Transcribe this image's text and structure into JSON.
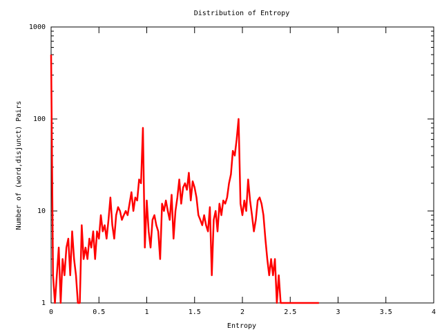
{
  "chart_data": {
    "type": "line",
    "title": "Distribution of Entropy",
    "x_label": "Entropy",
    "y_label": "Number of (word,disjunct) Pairs",
    "log_y": true,
    "grid": false,
    "xlim": [
      0,
      4
    ],
    "xticks": [
      0,
      0.5,
      1,
      1.5,
      2,
      2.5,
      3,
      3.5,
      4
    ],
    "ylim": [
      1,
      1000
    ],
    "yticks": [
      1,
      10,
      100,
      1000
    ],
    "x": [
      0,
      0.02,
      0.04,
      0.06,
      0.08,
      0.1,
      0.12,
      0.14,
      0.16,
      0.18,
      0.2,
      0.22,
      0.24,
      0.26,
      0.28,
      0.3,
      0.32,
      0.34,
      0.36,
      0.38,
      0.4,
      0.42,
      0.44,
      0.46,
      0.48,
      0.5,
      0.52,
      0.54,
      0.56,
      0.58,
      0.6,
      0.62,
      0.64,
      0.66,
      0.68,
      0.7,
      0.72,
      0.74,
      0.76,
      0.78,
      0.8,
      0.82,
      0.84,
      0.86,
      0.88,
      0.9,
      0.92,
      0.94,
      0.96,
      0.98,
      1,
      1.02,
      1.04,
      1.06,
      1.08,
      1.1,
      1.12,
      1.14,
      1.16,
      1.18,
      1.2,
      1.22,
      1.24,
      1.26,
      1.28,
      1.3,
      1.32,
      1.34,
      1.36,
      1.38,
      1.4,
      1.42,
      1.44,
      1.46,
      1.48,
      1.5,
      1.52,
      1.54,
      1.56,
      1.58,
      1.6,
      1.62,
      1.64,
      1.66,
      1.68,
      1.7,
      1.72,
      1.74,
      1.76,
      1.78,
      1.8,
      1.82,
      1.84,
      1.86,
      1.88,
      1.9,
      1.92,
      1.94,
      1.96,
      1.98,
      2,
      2.02,
      2.04,
      2.06,
      2.08,
      2.1,
      2.12,
      2.14,
      2.16,
      2.18,
      2.2,
      2.22,
      2.24,
      2.26,
      2.28,
      2.3,
      2.32,
      2.34,
      2.36,
      2.38,
      2.4,
      2.44,
      2.48,
      2.52,
      2.56,
      2.6,
      2.64,
      2.68,
      2.72,
      2.76,
      2.8
    ],
    "series": [
      {
        "color": "#ff0000",
        "values": [
          500,
          2,
          1,
          2,
          4,
          1,
          3,
          2,
          4,
          5,
          2,
          6,
          3,
          2,
          1,
          1,
          7,
          3,
          4,
          3,
          5,
          4,
          6,
          3,
          6,
          5,
          9,
          6,
          7,
          5,
          8,
          14,
          7,
          5,
          9,
          11,
          10,
          8,
          9,
          10,
          9,
          12,
          16,
          10,
          14,
          13,
          22,
          20,
          80,
          4,
          13,
          6,
          4,
          8,
          9,
          7,
          6,
          3,
          12,
          10,
          13,
          10,
          8,
          15,
          5,
          10,
          14,
          22,
          12,
          18,
          20,
          17,
          26,
          13,
          21,
          18,
          14,
          9,
          8,
          7,
          9,
          7,
          6,
          11,
          2,
          8,
          10,
          6,
          12,
          9,
          13,
          12,
          14,
          20,
          25,
          45,
          40,
          60,
          100,
          12,
          9,
          13,
          10,
          22,
          13,
          9,
          6,
          8,
          13,
          14,
          12,
          9,
          5,
          3,
          2,
          3,
          2,
          3,
          1,
          2,
          1,
          1,
          1,
          1,
          1,
          1,
          1,
          1,
          1,
          1,
          1
        ]
      }
    ]
  }
}
